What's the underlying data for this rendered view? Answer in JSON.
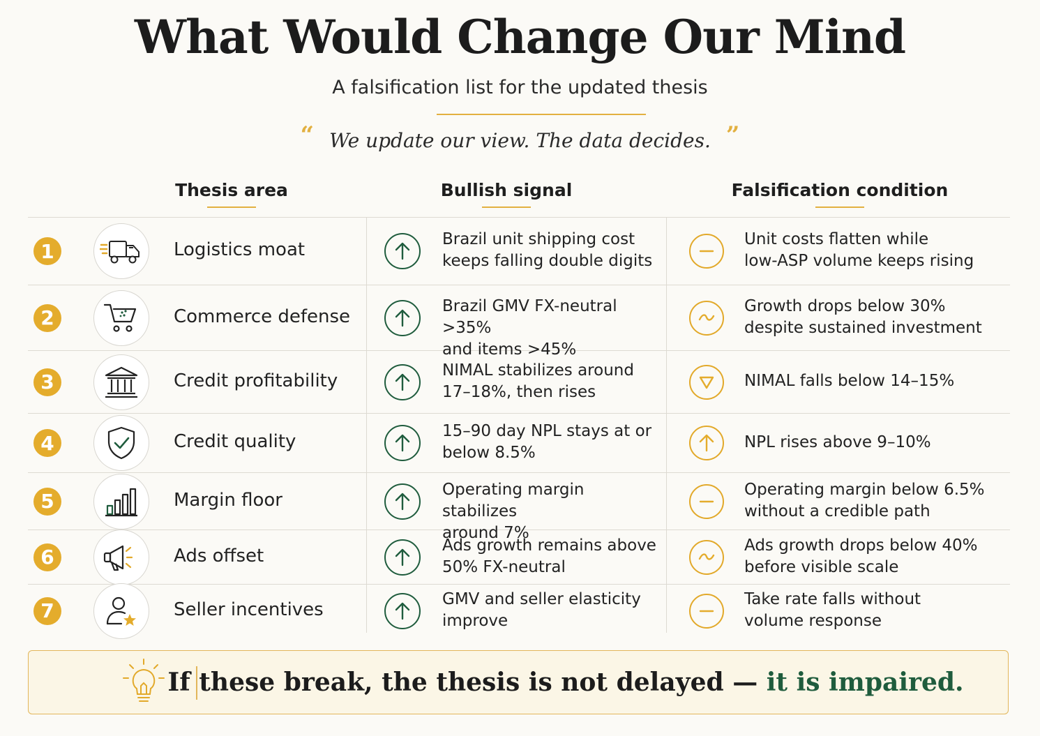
{
  "title": "What Would Change Our Mind",
  "subtitle": "A falsification list for the updated thesis",
  "quote": "We update our view. The data decides.",
  "quote_open": "“",
  "quote_close": "”",
  "columns": {
    "area": "Thesis area",
    "signal": "Bullish signal",
    "falsification": "Falsification condition"
  },
  "colors": {
    "accent_gold": "#e4ac2c",
    "accent_green": "#1f5c3d"
  },
  "rows": [
    {
      "num": "1",
      "icon": "truck-icon",
      "area": "Logistics moat",
      "signal_icon": "arrow-up-icon",
      "signal": [
        "Brazil unit shipping cost",
        "keeps falling double digits"
      ],
      "fal_icon": "minus-icon",
      "falsification": [
        "Unit costs flatten while",
        "low-ASP volume keeps rising"
      ]
    },
    {
      "num": "2",
      "icon": "shopping-cart-icon",
      "area": "Commerce defense",
      "signal_icon": "arrow-up-icon",
      "signal": [
        "Brazil GMV FX-neutral >35%",
        "and items >45%"
      ],
      "fal_icon": "tilde-icon",
      "falsification": [
        "Growth drops below 30%",
        "despite sustained investment"
      ]
    },
    {
      "num": "3",
      "icon": "bank-icon",
      "area": "Credit profitability",
      "signal_icon": "arrow-up-icon",
      "signal": [
        "NIMAL stabilizes around",
        "17–18%, then rises"
      ],
      "fal_icon": "triangle-down-icon",
      "falsification": [
        "NIMAL falls below 14–15%"
      ]
    },
    {
      "num": "4",
      "icon": "shield-check-icon",
      "area": "Credit quality",
      "signal_icon": "arrow-up-icon",
      "signal": [
        "15–90 day NPL stays at or",
        "below 8.5%"
      ],
      "fal_icon": "arrow-up-icon",
      "falsification": [
        "NPL rises above 9–10%"
      ]
    },
    {
      "num": "5",
      "icon": "bar-chart-icon",
      "area": "Margin floor",
      "signal_icon": "arrow-up-icon",
      "signal": [
        "Operating margin stabilizes",
        "around 7%"
      ],
      "fal_icon": "minus-icon",
      "falsification": [
        "Operating margin below 6.5%",
        "without a credible path"
      ]
    },
    {
      "num": "6",
      "icon": "megaphone-icon",
      "area": "Ads offset",
      "signal_icon": "arrow-up-icon",
      "signal": [
        "Ads growth remains above",
        "50% FX-neutral"
      ],
      "fal_icon": "tilde-icon",
      "falsification": [
        "Ads growth drops below 40%",
        "before visible scale"
      ]
    },
    {
      "num": "7",
      "icon": "user-star-icon",
      "area": "Seller incentives",
      "signal_icon": "arrow-up-icon",
      "signal": [
        "GMV and seller elasticity",
        "improve"
      ],
      "fal_icon": "minus-icon",
      "falsification": [
        "Take rate falls without",
        "volume response"
      ]
    }
  ],
  "banner": {
    "icon": "lightbulb-icon",
    "text_main": "If these break, the thesis is not delayed — ",
    "text_emphasis": "it is impaired."
  }
}
